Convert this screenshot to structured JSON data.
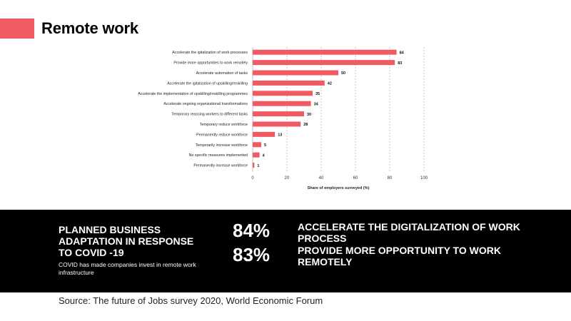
{
  "page": {
    "title": "Remote work"
  },
  "colors": {
    "accent": "#f05a63",
    "bar": "#f05a63",
    "panel_bg": "#000000",
    "grid": "#999999"
  },
  "chart_data": {
    "type": "bar",
    "orientation": "horizontal",
    "categories": [
      "Accelerate the igitalization of work processes",
      "Provide more opportunities to work remotely",
      "Accelerate automation of tasks",
      "Accelerate the igitalization of upskilling/reskilling",
      "Accelerate the implementation of upskilling/reskilling programmes",
      "Accelerate ongoing organizational transformations",
      "Temporary reassing workers to different tasks",
      "Temporary reduce workforce",
      "Permanently reduce workforce",
      "Temporarily increase workforce",
      "No specific measures implemented",
      "Permanently increase workforce"
    ],
    "values": [
      84,
      83,
      50,
      42,
      35,
      34,
      30,
      28,
      13,
      5,
      4,
      1
    ],
    "xlabel": "Share of employers surveyed (%)",
    "xlim": [
      0,
      100
    ],
    "xticks": [
      0,
      20,
      40,
      60,
      80,
      100
    ],
    "grid": "vertical dashed"
  },
  "panel": {
    "heading": "PLANNED BUSINESS ADAPTATION IN RESPONSE TO COVID -19",
    "subtext": "COVID has made companies invest in remote work infrastructure",
    "stats": [
      {
        "value": "84%",
        "label": "ACCELERATE THE DIGITALIZATION OF WORK PROCESS"
      },
      {
        "value": "83%",
        "label": "PROVIDE MORE OPPORTUNITY TO WORK  REMOTELY"
      }
    ]
  },
  "source": "Source: The future of Jobs survey 2020, World Economic Forum"
}
